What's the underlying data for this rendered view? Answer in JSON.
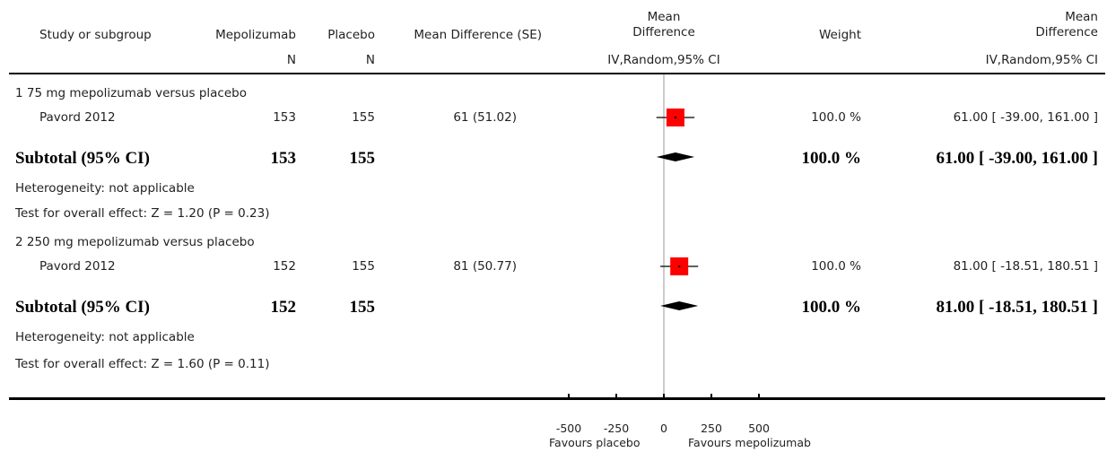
{
  "headers": {
    "study": "Study or subgroup",
    "exp_group": "Mepolizumab",
    "ctrl_group": "Placebo",
    "md_se": "Mean Difference (SE)",
    "plot_title_1": "Mean",
    "plot_title_2": "Difference",
    "weight": "Weight",
    "md_title_1": "Mean",
    "md_title_2": "Difference",
    "exp_n": "N",
    "ctrl_n": "N",
    "plot_method": "IV,Random,95% CI",
    "md_method": "IV,Random,95% CI"
  },
  "subgroups": [
    {
      "title": "1 75 mg mepolizumab versus placebo",
      "studies": [
        {
          "name": "Pavord 2012",
          "exp_n": "153",
          "ctrl_n": "155",
          "md_se": "61 (51.02)",
          "weight": "100.0 %",
          "ci_text": "61.00 [ -39.00, 161.00 ]"
        }
      ],
      "subtotal": {
        "label": "Subtotal (95% CI)",
        "exp_n": "153",
        "ctrl_n": "155",
        "weight": "100.0 %",
        "ci_text": "61.00 [ -39.00, 161.00 ]"
      },
      "heterogeneity": "Heterogeneity: not applicable",
      "overall_effect": "Test for overall effect: Z = 1.20 (P = 0.23)"
    },
    {
      "title": "2 250 mg mepolizumab versus placebo",
      "studies": [
        {
          "name": "Pavord 2012",
          "exp_n": "152",
          "ctrl_n": "155",
          "md_se": "81 (50.77)",
          "weight": "100.0 %",
          "ci_text": "81.00 [ -18.51, 180.51 ]"
        }
      ],
      "subtotal": {
        "label": "Subtotal (95% CI)",
        "exp_n": "152",
        "ctrl_n": "155",
        "weight": "100.0 %",
        "ci_text": "81.00 [ -18.51, 180.51 ]"
      },
      "heterogeneity": "Heterogeneity: not applicable",
      "overall_effect": "Test for overall effect: Z = 1.60 (P = 0.11)"
    }
  ],
  "footer": {
    "favours_left": "Favours placebo",
    "favours_right": "Favours mepolizumab"
  },
  "colors": {
    "marker": "#ff0000",
    "line": "#000000",
    "null_line": "#999999"
  },
  "chart_data": {
    "type": "forest",
    "x_ticks": [
      -500,
      -250,
      0,
      250,
      500
    ],
    "x_tick_labels": [
      "-500",
      "-250",
      "0",
      "250",
      "500"
    ],
    "xlim": [
      -500,
      500
    ],
    "studies": [
      {
        "subgroup": 1,
        "estimate": 61.0,
        "ci": [
          -39.0,
          161.0
        ]
      },
      {
        "subgroup": 2,
        "estimate": 81.0,
        "ci": [
          -18.51,
          180.51
        ]
      }
    ],
    "subtotals": [
      {
        "subgroup": 1,
        "estimate": 61.0,
        "ci": [
          -39.0,
          161.0
        ]
      },
      {
        "subgroup": 2,
        "estimate": 81.0,
        "ci": [
          -18.51,
          180.51
        ]
      }
    ]
  }
}
